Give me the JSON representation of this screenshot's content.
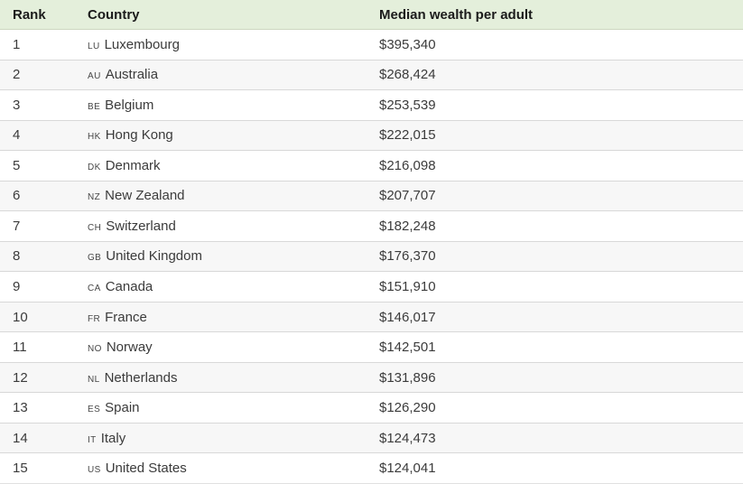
{
  "table": {
    "columns": [
      {
        "label": "Rank"
      },
      {
        "label": "Country"
      },
      {
        "label": "Median wealth per adult"
      }
    ],
    "rows": [
      {
        "rank": "1",
        "code": "LU",
        "country": "Luxembourg",
        "value": "$395,340"
      },
      {
        "rank": "2",
        "code": "AU",
        "country": "Australia",
        "value": "$268,424"
      },
      {
        "rank": "3",
        "code": "BE",
        "country": "Belgium",
        "value": "$253,539"
      },
      {
        "rank": "4",
        "code": "HK",
        "country": "Hong Kong",
        "value": "$222,015"
      },
      {
        "rank": "5",
        "code": "DK",
        "country": "Denmark",
        "value": "$216,098"
      },
      {
        "rank": "6",
        "code": "NZ",
        "country": "New Zealand",
        "value": "$207,707"
      },
      {
        "rank": "7",
        "code": "CH",
        "country": "Switzerland",
        "value": "$182,248"
      },
      {
        "rank": "8",
        "code": "GB",
        "country": "United Kingdom",
        "value": "$176,370"
      },
      {
        "rank": "9",
        "code": "CA",
        "country": "Canada",
        "value": "$151,910"
      },
      {
        "rank": "10",
        "code": "FR",
        "country": "France",
        "value": "$146,017"
      },
      {
        "rank": "11",
        "code": "NO",
        "country": "Norway",
        "value": "$142,501"
      },
      {
        "rank": "12",
        "code": "NL",
        "country": "Netherlands",
        "value": "$131,896"
      },
      {
        "rank": "13",
        "code": "ES",
        "country": "Spain",
        "value": "$126,290"
      },
      {
        "rank": "14",
        "code": "IT",
        "country": "Italy",
        "value": "$124,473"
      },
      {
        "rank": "15",
        "code": "US",
        "country": "United States",
        "value": "$124,041"
      }
    ]
  },
  "colors": {
    "header_bg": "#e4efdb",
    "header_border": "#cdd7c0",
    "row_alt_bg": "#f7f7f7",
    "divider": "#d8d8d8",
    "header_text": "#1b1b1b",
    "body_text": "#3b3b3b"
  },
  "chart_data": {
    "type": "table",
    "title": "Median wealth per adult",
    "columns": [
      "Rank",
      "Country",
      "Median wealth per adult"
    ],
    "categories": [
      "Luxembourg",
      "Australia",
      "Belgium",
      "Hong Kong",
      "Denmark",
      "New Zealand",
      "Switzerland",
      "United Kingdom",
      "Canada",
      "France",
      "Norway",
      "Netherlands",
      "Spain",
      "Italy",
      "United States"
    ],
    "country_codes": [
      "LU",
      "AU",
      "BE",
      "HK",
      "DK",
      "NZ",
      "CH",
      "GB",
      "CA",
      "FR",
      "NO",
      "NL",
      "ES",
      "IT",
      "US"
    ],
    "values": [
      395340,
      268424,
      253539,
      222015,
      216098,
      207707,
      182248,
      176370,
      151910,
      146017,
      142501,
      131896,
      126290,
      124473,
      124041
    ],
    "value_unit": "USD",
    "sort": "descending by value"
  }
}
